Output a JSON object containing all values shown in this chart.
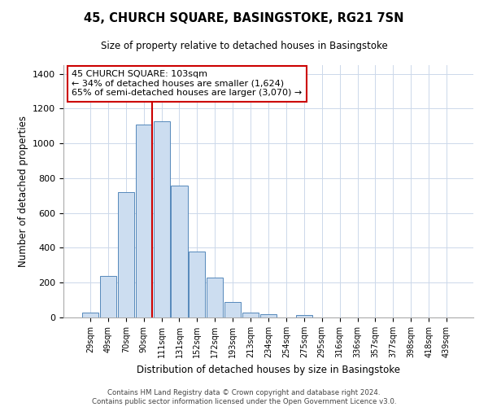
{
  "title": "45, CHURCH SQUARE, BASINGSTOKE, RG21 7SN",
  "subtitle": "Size of property relative to detached houses in Basingstoke",
  "xlabel": "Distribution of detached houses by size in Basingstoke",
  "ylabel": "Number of detached properties",
  "bar_labels": [
    "29sqm",
    "49sqm",
    "70sqm",
    "90sqm",
    "111sqm",
    "131sqm",
    "152sqm",
    "172sqm",
    "193sqm",
    "213sqm",
    "234sqm",
    "254sqm",
    "275sqm",
    "295sqm",
    "316sqm",
    "336sqm",
    "357sqm",
    "377sqm",
    "398sqm",
    "418sqm",
    "439sqm"
  ],
  "bar_values": [
    30,
    240,
    720,
    1110,
    1125,
    760,
    380,
    230,
    90,
    30,
    20,
    0,
    15,
    0,
    0,
    0,
    0,
    0,
    0,
    0,
    0
  ],
  "bar_color": "#ccddf0",
  "bar_edge_color": "#5588bb",
  "vline_color": "#cc0000",
  "annotation_title": "45 CHURCH SQUARE: 103sqm",
  "annotation_line1": "← 34% of detached houses are smaller (1,624)",
  "annotation_line2": "65% of semi-detached houses are larger (3,070) →",
  "annotation_box_edge": "#cc0000",
  "ylim": [
    0,
    1450
  ],
  "yticks": [
    0,
    200,
    400,
    600,
    800,
    1000,
    1200,
    1400
  ],
  "footer1": "Contains HM Land Registry data © Crown copyright and database right 2024.",
  "footer2": "Contains public sector information licensed under the Open Government Licence v3.0.",
  "background_color": "#ffffff",
  "grid_color": "#ccd8ea"
}
